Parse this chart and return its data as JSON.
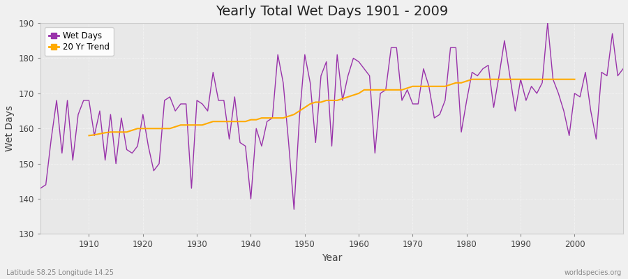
{
  "title": "Yearly Total Wet Days 1901 - 2009",
  "xlabel": "Year",
  "ylabel": "Wet Days",
  "bottom_left_label": "Latitude 58.25 Longitude 14.25",
  "bottom_right_label": "worldspecies.org",
  "wet_days_color": "#9933aa",
  "trend_color": "#ffaa00",
  "bg_color": "#f0f0f0",
  "plot_bg_color": "#e8e8e8",
  "ylim": [
    130,
    190
  ],
  "xlim": [
    1901,
    2009
  ],
  "years": [
    1901,
    1902,
    1903,
    1904,
    1905,
    1906,
    1907,
    1908,
    1909,
    1910,
    1911,
    1912,
    1913,
    1914,
    1915,
    1916,
    1917,
    1918,
    1919,
    1920,
    1921,
    1922,
    1923,
    1924,
    1925,
    1926,
    1927,
    1928,
    1929,
    1930,
    1931,
    1932,
    1933,
    1934,
    1935,
    1936,
    1937,
    1938,
    1939,
    1940,
    1941,
    1942,
    1943,
    1944,
    1945,
    1946,
    1947,
    1948,
    1949,
    1950,
    1951,
    1952,
    1953,
    1954,
    1955,
    1956,
    1957,
    1958,
    1959,
    1960,
    1961,
    1962,
    1963,
    1964,
    1965,
    1966,
    1967,
    1968,
    1969,
    1970,
    1971,
    1972,
    1973,
    1974,
    1975,
    1976,
    1977,
    1978,
    1979,
    1980,
    1981,
    1982,
    1983,
    1984,
    1985,
    1986,
    1987,
    1988,
    1989,
    1990,
    1991,
    1992,
    1993,
    1994,
    1995,
    1996,
    1997,
    1998,
    1999,
    2000,
    2001,
    2002,
    2003,
    2004,
    2005,
    2006,
    2007,
    2008,
    2009
  ],
  "wet_days": [
    143,
    144,
    157,
    168,
    153,
    168,
    151,
    164,
    168,
    168,
    158,
    165,
    151,
    164,
    150,
    163,
    154,
    153,
    155,
    164,
    155,
    148,
    150,
    168,
    169,
    165,
    167,
    167,
    143,
    168,
    167,
    165,
    176,
    168,
    168,
    157,
    169,
    156,
    155,
    140,
    160,
    155,
    162,
    163,
    181,
    173,
    156,
    137,
    163,
    181,
    173,
    156,
    175,
    179,
    155,
    181,
    168,
    175,
    180,
    179,
    177,
    175,
    153,
    170,
    171,
    183,
    183,
    168,
    171,
    167,
    167,
    177,
    172,
    163,
    164,
    168,
    183,
    183,
    159,
    168,
    176,
    175,
    177,
    178,
    166,
    175,
    185,
    175,
    165,
    174,
    168,
    172,
    170,
    173,
    190,
    174,
    170,
    165,
    158,
    170,
    169,
    176,
    165,
    157,
    176,
    175,
    187,
    175,
    177
  ],
  "trend_years": [
    1910,
    1911,
    1912,
    1913,
    1914,
    1915,
    1916,
    1917,
    1918,
    1919,
    1920,
    1921,
    1922,
    1923,
    1924,
    1925,
    1926,
    1927,
    1928,
    1929,
    1930,
    1931,
    1932,
    1933,
    1934,
    1935,
    1936,
    1937,
    1938,
    1939,
    1940,
    1941,
    1942,
    1943,
    1944,
    1945,
    1946,
    1947,
    1948,
    1949,
    1950,
    1951,
    1952,
    1953,
    1954,
    1955,
    1956,
    1957,
    1958,
    1959,
    1960,
    1961,
    1962,
    1963,
    1964,
    1965,
    1966,
    1967,
    1968,
    1969,
    1970,
    1971,
    1972,
    1973,
    1974,
    1975,
    1976,
    1977,
    1978,
    1979,
    1980,
    1981,
    1982,
    1983,
    1984,
    1985,
    1986,
    1987,
    1988,
    1989,
    1990,
    1991,
    1992,
    1993,
    1994,
    1995,
    1996,
    1997,
    1998,
    1999,
    2000
  ],
  "trend_values": [
    158.0,
    158.2,
    158.5,
    158.8,
    159.0,
    159.0,
    159.0,
    159.0,
    159.5,
    160.0,
    160.0,
    160.0,
    160.0,
    160.0,
    160.0,
    160.0,
    160.5,
    161.0,
    161.0,
    161.0,
    161.0,
    161.0,
    161.5,
    162.0,
    162.0,
    162.0,
    162.0,
    162.0,
    162.0,
    162.0,
    162.5,
    162.5,
    163.0,
    163.0,
    163.0,
    163.0,
    163.0,
    163.5,
    164.0,
    165.0,
    166.0,
    167.0,
    167.5,
    167.5,
    168.0,
    168.0,
    168.0,
    168.5,
    169.0,
    169.5,
    170.0,
    171.0,
    171.0,
    171.0,
    171.0,
    171.0,
    171.0,
    171.0,
    171.0,
    171.5,
    172.0,
    172.0,
    172.0,
    172.0,
    172.0,
    172.0,
    172.0,
    172.5,
    173.0,
    173.0,
    173.5,
    174.0,
    174.0,
    174.0,
    174.0,
    174.0,
    174.0,
    174.0,
    174.0,
    174.0,
    174.0,
    174.0,
    174.0,
    174.0,
    174.0,
    174.0,
    174.0,
    174.0,
    174.0,
    174.0,
    174.0
  ],
  "xticks": [
    1910,
    1920,
    1930,
    1940,
    1950,
    1960,
    1970,
    1980,
    1990,
    2000
  ],
  "yticks": [
    130,
    140,
    150,
    160,
    170,
    180,
    190
  ]
}
